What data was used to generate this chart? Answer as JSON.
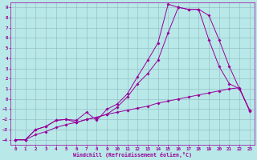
{
  "xlabel": "Windchill (Refroidissement éolien,°C)",
  "background_color": "#b8e8e8",
  "grid_color": "#90b8c0",
  "line_color": "#990099",
  "xlim": [
    -0.5,
    23.5
  ],
  "ylim": [
    -4.5,
    9.5
  ],
  "xticks": [
    0,
    1,
    2,
    3,
    4,
    5,
    6,
    7,
    8,
    9,
    10,
    11,
    12,
    13,
    14,
    15,
    16,
    17,
    18,
    19,
    20,
    21,
    22,
    23
  ],
  "yticks": [
    -4,
    -3,
    -2,
    -1,
    0,
    1,
    2,
    3,
    4,
    5,
    6,
    7,
    8,
    9
  ],
  "line1_x": [
    0,
    1,
    2,
    3,
    4,
    5,
    6,
    7,
    8,
    9,
    10,
    11,
    12,
    13,
    14,
    15,
    16,
    17,
    18,
    19,
    20,
    21,
    22,
    23
  ],
  "line1_y": [
    -4,
    -4,
    -3.5,
    -3.2,
    -2.8,
    -2.5,
    -2.3,
    -2.0,
    -1.8,
    -1.5,
    -1.3,
    -1.1,
    -0.9,
    -0.7,
    -0.4,
    -0.2,
    0.0,
    0.2,
    0.4,
    0.6,
    0.8,
    1.0,
    1.1,
    -1.2
  ],
  "line2_x": [
    0,
    1,
    2,
    3,
    4,
    5,
    6,
    7,
    8,
    9,
    10,
    11,
    12,
    13,
    14,
    15,
    16,
    17,
    18,
    19,
    20,
    21,
    22,
    23
  ],
  "line2_y": [
    -4,
    -4,
    -3.0,
    -2.7,
    -2.1,
    -2.0,
    -2.1,
    -1.3,
    -2.1,
    -1.0,
    -0.5,
    0.5,
    2.2,
    3.8,
    5.5,
    9.3,
    9.0,
    8.8,
    8.8,
    5.8,
    3.2,
    1.5,
    1.0,
    -1.1
  ],
  "line3_x": [
    0,
    1,
    2,
    3,
    4,
    5,
    6,
    7,
    8,
    9,
    10,
    11,
    12,
    13,
    14,
    15,
    16,
    17,
    18,
    19,
    20,
    21,
    22,
    23
  ],
  "line3_y": [
    -4,
    -4,
    -3.0,
    -2.7,
    -2.1,
    -2.0,
    -2.3,
    -2.0,
    -1.8,
    -1.5,
    -0.8,
    0.2,
    1.5,
    2.5,
    3.8,
    6.5,
    9.0,
    8.8,
    8.8,
    8.2,
    5.8,
    3.2,
    1.0,
    -1.1
  ]
}
